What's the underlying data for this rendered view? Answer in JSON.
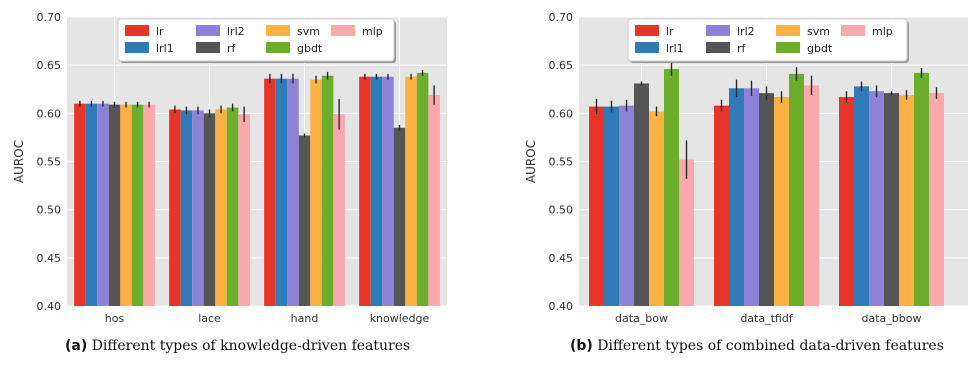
{
  "colors": {
    "lr": "#e8352a",
    "lrl1": "#2e7bb8",
    "lrl2": "#8d82d8",
    "rf": "#555555",
    "svm": "#fbb143",
    "gbdt": "#6cad2c",
    "mlp": "#fba8ad"
  },
  "chart_data": [
    {
      "type": "bar",
      "ylabel": "AUROC",
      "ylim": [
        0.4,
        0.7
      ],
      "yticks": [
        "0.40",
        "0.45",
        "0.50",
        "0.55",
        "0.60",
        "0.65",
        "0.70"
      ],
      "grid": true,
      "legend_position": "top-center",
      "categories": [
        "hos",
        "lace",
        "hand",
        "knowledge"
      ],
      "series": [
        {
          "name": "lr",
          "values": [
            0.61,
            0.604,
            0.636,
            0.638
          ],
          "errors": [
            0.003,
            0.004,
            0.005,
            0.003
          ]
        },
        {
          "name": "lrl1",
          "values": [
            0.61,
            0.603,
            0.636,
            0.638
          ],
          "errors": [
            0.003,
            0.004,
            0.005,
            0.003
          ]
        },
        {
          "name": "lrl2",
          "values": [
            0.61,
            0.603,
            0.636,
            0.638
          ],
          "errors": [
            0.003,
            0.004,
            0.005,
            0.003
          ]
        },
        {
          "name": "rf",
          "values": [
            0.609,
            0.6,
            0.577,
            0.585
          ],
          "errors": [
            0.003,
            0.004,
            0.002,
            0.003
          ]
        },
        {
          "name": "svm",
          "values": [
            0.609,
            0.604,
            0.635,
            0.638
          ],
          "errors": [
            0.003,
            0.004,
            0.004,
            0.003
          ]
        },
        {
          "name": "gbdt",
          "values": [
            0.609,
            0.606,
            0.639,
            0.642
          ],
          "errors": [
            0.003,
            0.004,
            0.004,
            0.003
          ]
        },
        {
          "name": "mlp",
          "values": [
            0.609,
            0.599,
            0.599,
            0.619
          ],
          "errors": [
            0.003,
            0.008,
            0.016,
            0.01
          ]
        }
      ],
      "caption_letter": "(a)",
      "caption_text": "Different types of knowledge-driven features"
    },
    {
      "type": "bar",
      "ylabel": "AUROC",
      "ylim": [
        0.4,
        0.7
      ],
      "yticks": [
        "0.40",
        "0.45",
        "0.50",
        "0.55",
        "0.60",
        "0.65",
        "0.70"
      ],
      "grid": true,
      "legend_position": "top-center",
      "categories": [
        "data_bow",
        "data_tfidf",
        "data_bbow"
      ],
      "series": [
        {
          "name": "lr",
          "values": [
            0.607,
            0.608,
            0.617
          ],
          "errors": [
            0.008,
            0.006,
            0.006
          ]
        },
        {
          "name": "lrl1",
          "values": [
            0.607,
            0.626,
            0.628
          ],
          "errors": [
            0.006,
            0.009,
            0.005
          ]
        },
        {
          "name": "lrl2",
          "values": [
            0.608,
            0.626,
            0.623
          ],
          "errors": [
            0.006,
            0.008,
            0.006
          ]
        },
        {
          "name": "rf",
          "values": [
            0.631,
            0.621,
            0.621
          ],
          "errors": [
            0.002,
            0.007,
            0.002
          ]
        },
        {
          "name": "svm",
          "values": [
            0.602,
            0.617,
            0.619
          ],
          "errors": [
            0.005,
            0.006,
            0.005
          ]
        },
        {
          "name": "gbdt",
          "values": [
            0.646,
            0.641,
            0.642
          ],
          "errors": [
            0.007,
            0.007,
            0.005
          ]
        },
        {
          "name": "mlp",
          "values": [
            0.552,
            0.629,
            0.621
          ],
          "errors": [
            0.02,
            0.01,
            0.006
          ]
        }
      ],
      "caption_letter": "(b)",
      "caption_text": "Different types of combined data-driven features"
    }
  ]
}
